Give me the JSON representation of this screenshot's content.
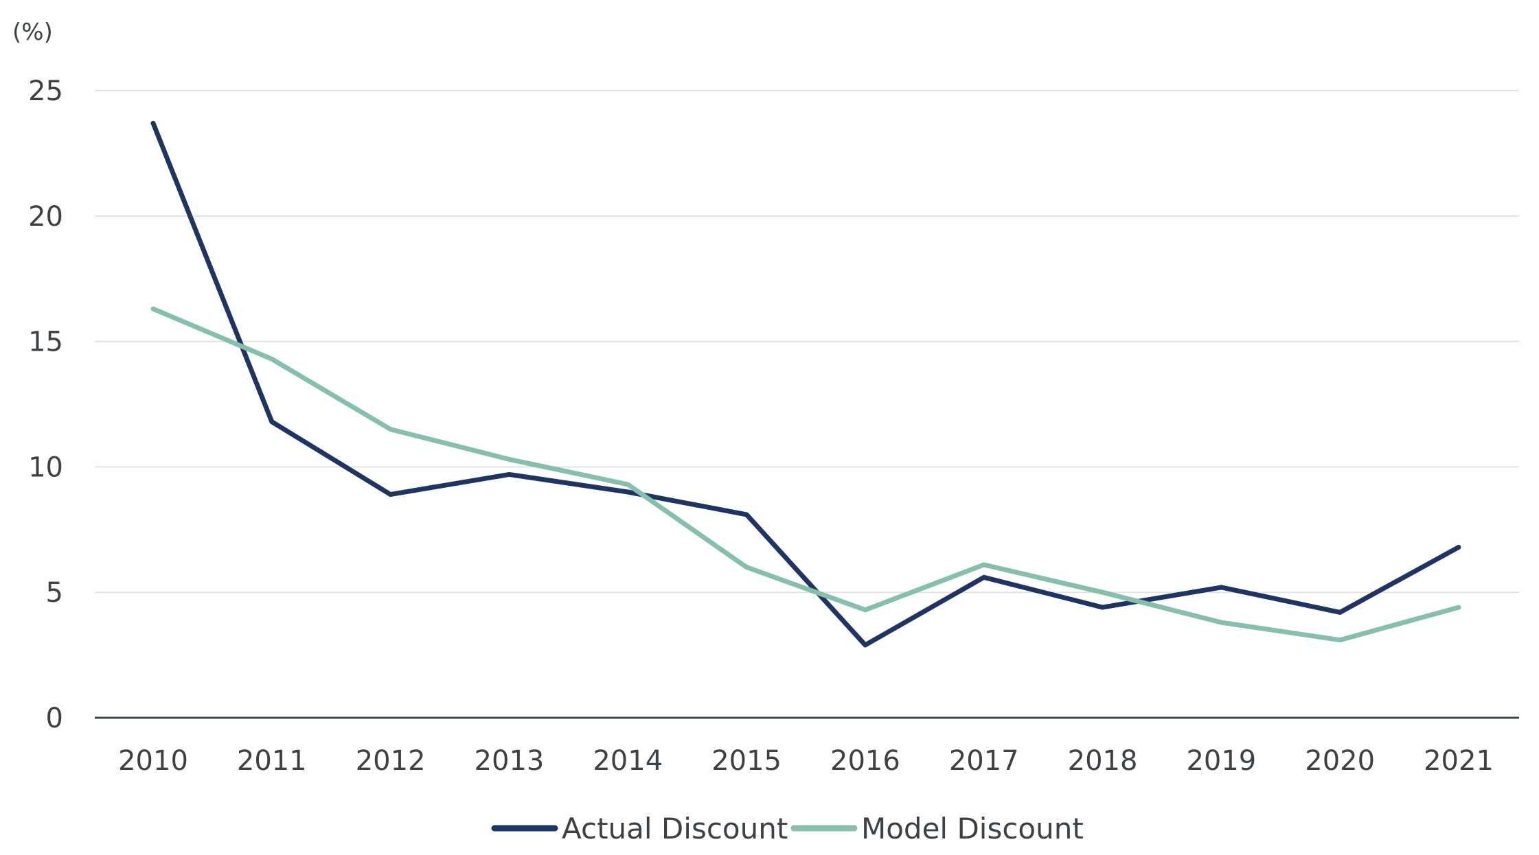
{
  "chart_data": {
    "type": "line",
    "title": "",
    "xlabel": "",
    "ylabel": "(%)",
    "ylim": [
      0,
      25
    ],
    "yticks": [
      "0",
      "5",
      "10",
      "15",
      "20",
      "25"
    ],
    "categories": [
      "2010",
      "2011",
      "2012",
      "2013",
      "2014",
      "2015",
      "2016",
      "2017",
      "2018",
      "2019",
      "2020",
      "2021"
    ],
    "series": [
      {
        "name": "Actual Discount",
        "color": "#1f3461",
        "values": [
          23.7,
          11.8,
          8.9,
          9.7,
          9.0,
          8.1,
          2.9,
          5.6,
          4.4,
          5.2,
          4.2,
          6.8
        ]
      },
      {
        "name": "Model Discount",
        "color": "#86bfae",
        "values": [
          16.3,
          14.3,
          11.5,
          10.3,
          9.3,
          6.0,
          4.3,
          6.1,
          5.0,
          3.8,
          3.1,
          4.4
        ]
      }
    ],
    "grid": true,
    "legend_position": "bottom-center"
  }
}
